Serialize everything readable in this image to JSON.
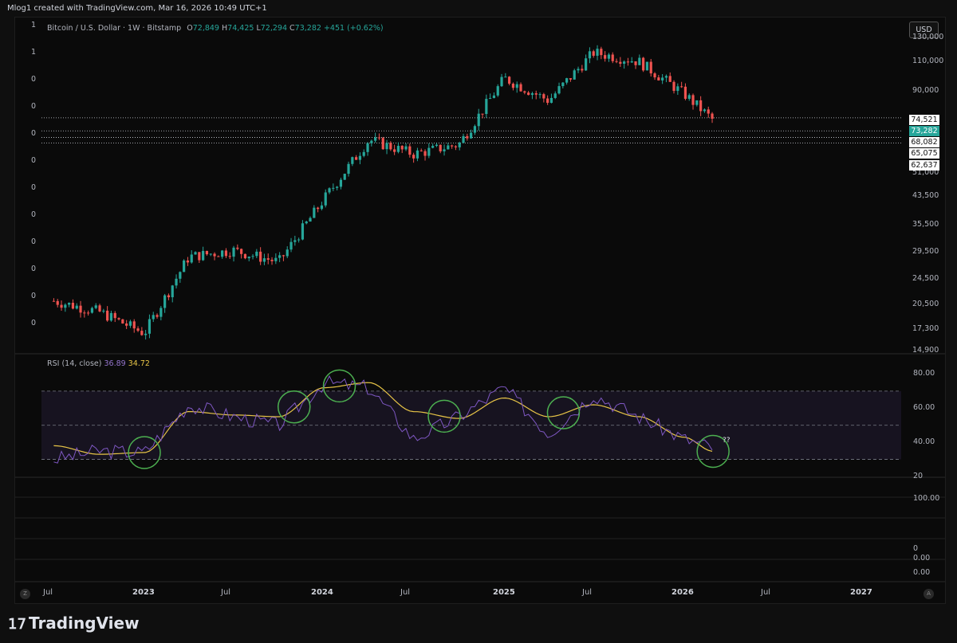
{
  "header": {
    "created_line": "Mlog1 created with TradingView.com, Mar 16, 2026 10:49 UTC+1"
  },
  "legend": {
    "symbol": "Bitcoin / U.S. Dollar · 1W · Bitstamp",
    "o_label": "O",
    "o": "72,849",
    "h_label": "H",
    "h": "74,425",
    "l_label": "L",
    "l": "72,294",
    "c_label": "C",
    "c": "73,282",
    "change": "+451 (+0.62%)"
  },
  "currency_button": "USD",
  "rsi_legend": {
    "name": "RSI (14, close)",
    "rsi": "36.89",
    "ma": "34.72"
  },
  "left_scale_labels": [
    "1",
    "1",
    "0",
    "0",
    "0",
    "0",
    "0",
    "0",
    "0",
    "0",
    "0",
    "0"
  ],
  "price_axis": [
    "130,000",
    "110,000",
    "90,000",
    "51,000",
    "43,500",
    "35,500",
    "29,500",
    "24,500",
    "20,500",
    "17,300",
    "14,900"
  ],
  "price_tags": [
    {
      "value": "74,521",
      "style": "white"
    },
    {
      "value": "73,282",
      "style": "green"
    },
    {
      "value": "68,082",
      "style": "white"
    },
    {
      "value": "65,075",
      "style": "white"
    },
    {
      "value": "62,637",
      "style": "white"
    }
  ],
  "rsi_axis": [
    "80.00",
    "60.00",
    "40.00",
    "20"
  ],
  "lower_axis": [
    "100.00",
    "0.00",
    "0",
    "0.00"
  ],
  "time_axis": [
    "Jul",
    "2023",
    "Jul",
    "2024",
    "Jul",
    "2025",
    "Jul",
    "2026",
    "Jul",
    "2027"
  ],
  "corner_left": "Z",
  "corner_right": "A",
  "annotation": "??",
  "brand": "TradingView",
  "colors": {
    "up": "#26a69a",
    "down": "#ef5350",
    "rsi": "#7e57c2",
    "rsi_ma": "#e8c547",
    "circle": "#4caf50"
  },
  "chart_data": {
    "type": "candlestick",
    "timeframe": "1W",
    "y_scale": "log",
    "ylim": [
      14900,
      135000
    ],
    "x": [
      "2022-07",
      "2022-10",
      "2023-01",
      "2023-04",
      "2023-07",
      "2023-10",
      "2024-01",
      "2024-04",
      "2024-07",
      "2024-10",
      "2025-01",
      "2025-04",
      "2025-07",
      "2025-10",
      "2026-01",
      "2026-03"
    ],
    "close": [
      21000,
      19500,
      16800,
      28500,
      29800,
      27500,
      42500,
      64000,
      58000,
      62000,
      98000,
      84000,
      117000,
      110000,
      88000,
      73282
    ],
    "horizontal_levels": [
      74521,
      68082,
      65075,
      62637
    ],
    "rsi": {
      "length": 14,
      "source": "close",
      "last": 36.89,
      "ma_last": 34.72,
      "bands": [
        30,
        50,
        70
      ],
      "ylim": [
        20,
        90
      ],
      "x": [
        "2022-07",
        "2022-10",
        "2023-01",
        "2023-04",
        "2023-07",
        "2023-10",
        "2024-01",
        "2024-04",
        "2024-07",
        "2024-10",
        "2025-01",
        "2025-04",
        "2025-07",
        "2025-10",
        "2026-01",
        "2026-03"
      ],
      "values": [
        30,
        35,
        34,
        62,
        55,
        50,
        75,
        72,
        42,
        55,
        72,
        45,
        68,
        55,
        42,
        36.89
      ],
      "ma": [
        38,
        33,
        34,
        58,
        56,
        55,
        72,
        75,
        58,
        54,
        66,
        55,
        62,
        55,
        43,
        34.72
      ]
    },
    "highlight_circles_x": [
      "2023-01",
      "2023-11",
      "2024-02",
      "2024-09",
      "2025-05",
      "2026-03"
    ]
  }
}
